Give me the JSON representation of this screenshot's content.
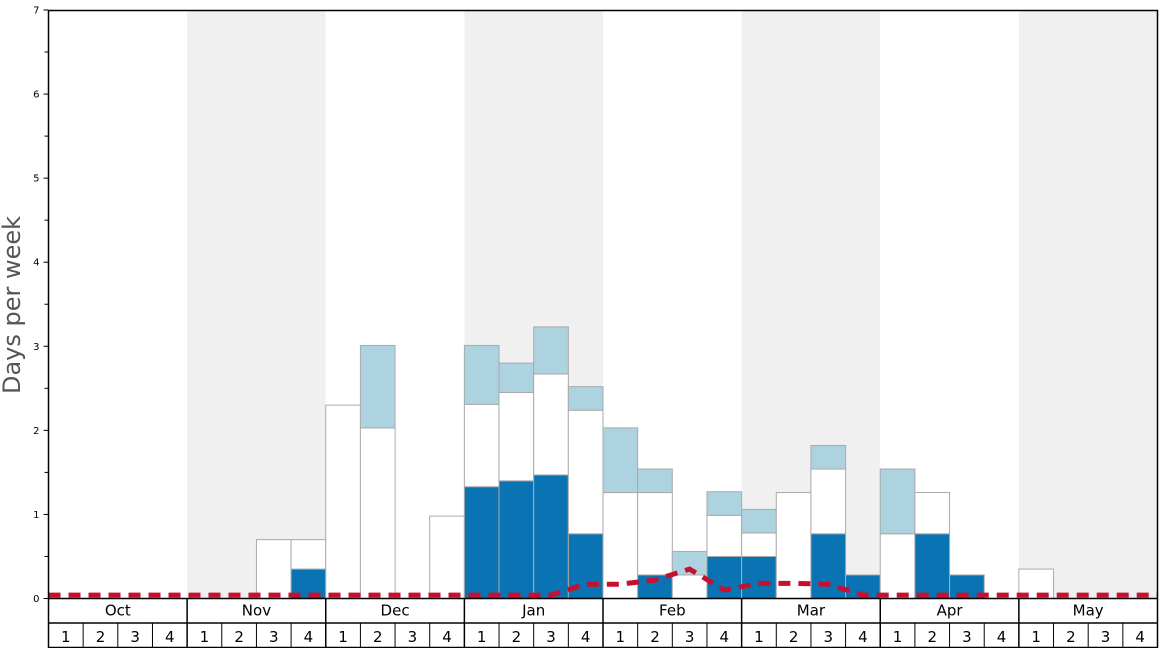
{
  "chart_data": {
    "type": "bar",
    "ylabel": "Days per week",
    "ylim": [
      0,
      7
    ],
    "yticks": [
      "0",
      "1",
      "2",
      "3",
      "4",
      "5",
      "6",
      "7"
    ],
    "months": [
      "Oct",
      "Nov",
      "Dec",
      "Jan",
      "Feb",
      "Mar",
      "Apr",
      "May"
    ],
    "week_labels": [
      "1",
      "2",
      "3",
      "4"
    ],
    "stacking": "stacked",
    "series": [
      {
        "color": "#0a73b4",
        "values": [
          0,
          0,
          0,
          0,
          0,
          0,
          0,
          0.35,
          0,
          0,
          0,
          0,
          1.33,
          1.4,
          1.47,
          0.77,
          0,
          0.28,
          0,
          0.5,
          0.5,
          0,
          0.77,
          0.28,
          0,
          0.77,
          0.28,
          0,
          0,
          0,
          0,
          0
        ]
      },
      {
        "color": "#ffffff",
        "values": [
          0,
          0,
          0,
          0,
          0,
          0,
          0.7,
          0.35,
          2.3,
          2.03,
          0,
          0.98,
          0.98,
          1.05,
          1.2,
          1.47,
          1.26,
          0.98,
          0.28,
          0.49,
          0.28,
          1.26,
          0.77,
          0,
          0.77,
          0.49,
          0,
          0,
          0.35,
          0,
          0,
          0
        ]
      },
      {
        "color": "#aed3e0",
        "values": [
          0,
          0,
          0,
          0,
          0,
          0,
          0,
          0,
          0,
          0.98,
          0,
          0,
          0.7,
          0.35,
          0.56,
          0.28,
          0.77,
          0.28,
          0.28,
          0.28,
          0.28,
          0,
          0.28,
          0,
          0.77,
          0,
          0,
          0,
          0,
          0,
          0,
          0
        ]
      }
    ],
    "average_line": {
      "color": "#c8102e",
      "style": "dashed",
      "values": [
        0.04,
        0.04,
        0.04,
        0.04,
        0.04,
        0.04,
        0.04,
        0.04,
        0.04,
        0.04,
        0.04,
        0.04,
        0.04,
        0.04,
        0.04,
        0.17,
        0.17,
        0.22,
        0.35,
        0.1,
        0.18,
        0.18,
        0.17,
        0.04,
        0.04,
        0.04,
        0.04,
        0.04,
        0.04,
        0.04,
        0.04,
        0.04
      ]
    },
    "month_shading": [
      "#ffffff",
      "#f0f0f0"
    ],
    "grid": false,
    "legend": "none"
  }
}
